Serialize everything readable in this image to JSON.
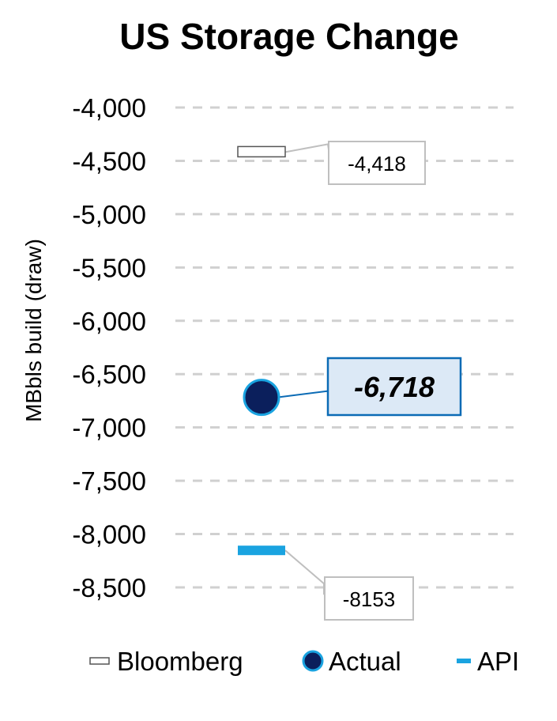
{
  "chart_data": {
    "type": "scatter",
    "title": "US Storage Change",
    "ylabel": "MBbls build (draw)",
    "ylim": [
      -8500,
      -4000
    ],
    "yticks": [
      -4000,
      -4500,
      -5000,
      -5500,
      -6000,
      -6500,
      -7000,
      -7500,
      -8000,
      -8500
    ],
    "ytick_labels": [
      "-4,000",
      "-4,500",
      "-5,000",
      "-5,500",
      "-6,000",
      "-6,500",
      "-7,000",
      "-7,500",
      "-8,000",
      "-8,500"
    ],
    "grid": true,
    "legend_position": "bottom",
    "series": [
      {
        "name": "Bloomberg",
        "value": -4418,
        "label": "-4,418",
        "marker": "outlined-dash",
        "color": "#ffffff",
        "edge_color": "#555555"
      },
      {
        "name": "Actual",
        "value": -6718,
        "label": "-6,718",
        "marker": "circle",
        "color": "#0b1f5c",
        "edge_color": "#1aa3e0"
      },
      {
        "name": "API",
        "value": -8153,
        "label": "-8153",
        "marker": "dash",
        "color": "#1aa3e0"
      }
    ]
  }
}
